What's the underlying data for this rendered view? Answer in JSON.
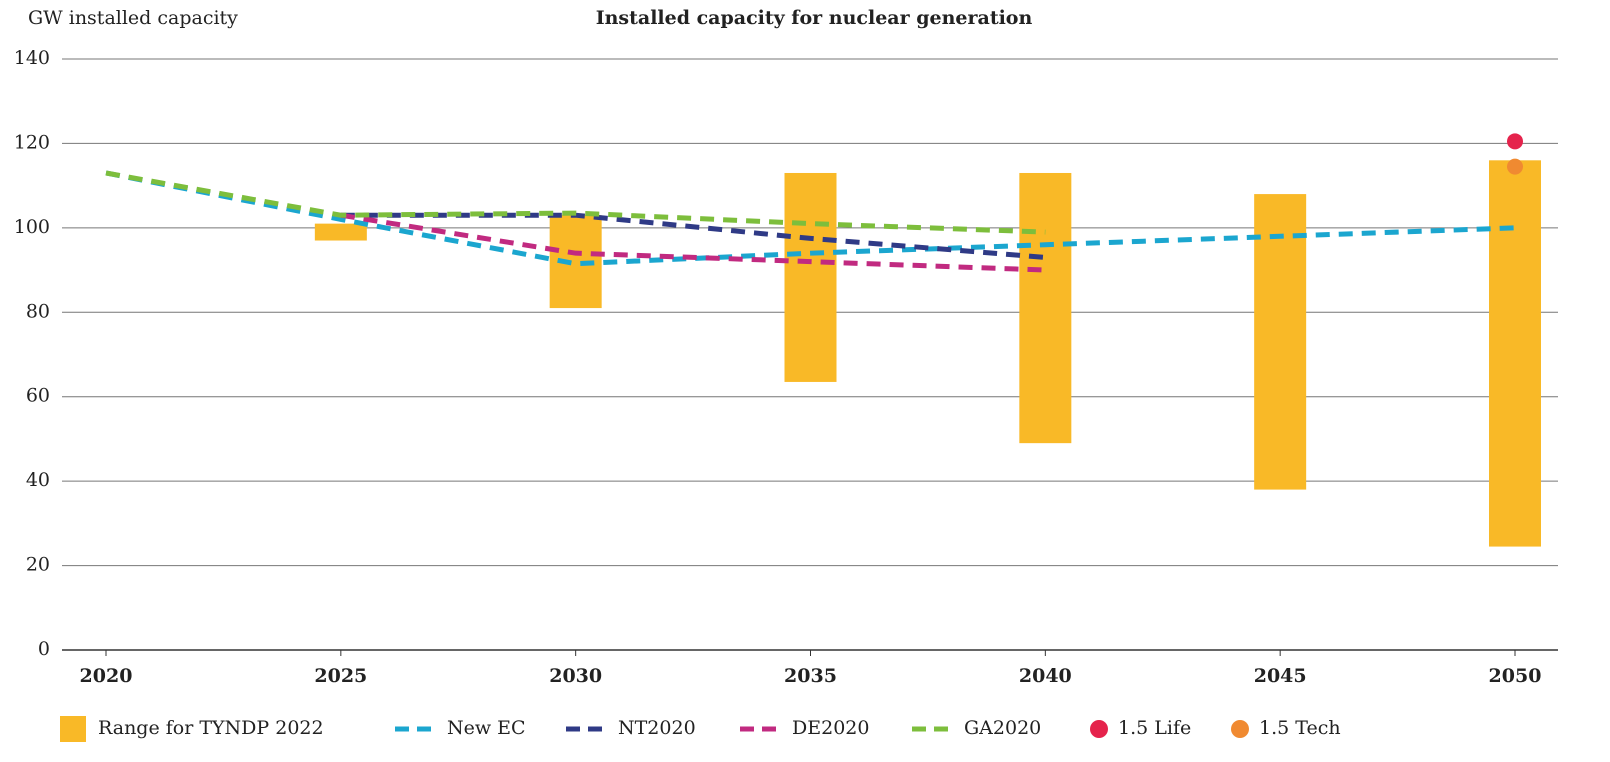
{
  "chart_data": {
    "type": "line",
    "title": "Installed capacity for nuclear generation",
    "y_label": "GW installed capacity",
    "xlim": [
      2020,
      2050
    ],
    "xticks": [
      2020,
      2025,
      2030,
      2035,
      2040,
      2045,
      2050
    ],
    "ylim": [
      0,
      140
    ],
    "yticks": [
      0,
      20,
      40,
      60,
      80,
      100,
      120,
      140
    ],
    "grid": true,
    "range": {
      "name": "Range for TYNDP 2022",
      "color": "#f9b927",
      "x": [
        2025,
        2030,
        2035,
        2040,
        2045,
        2050
      ],
      "low": [
        97,
        81,
        63.5,
        49,
        38,
        24.5
      ],
      "high": [
        101,
        103,
        113,
        113,
        108,
        116
      ]
    },
    "series": [
      {
        "name": "New EC",
        "color": "#1ba6cf",
        "x": [
          2020,
          2025,
          2030,
          2035,
          2040,
          2045,
          2050
        ],
        "values": [
          113,
          102,
          91.5,
          94,
          96,
          98,
          100
        ]
      },
      {
        "name": "NT2020",
        "color": "#2f3a86",
        "x": [
          2025,
          2030,
          2035,
          2040
        ],
        "values": [
          103,
          103,
          97.5,
          93
        ]
      },
      {
        "name": "DE2020",
        "color": "#c12a80",
        "x": [
          2025,
          2030,
          2035,
          2040
        ],
        "values": [
          103,
          94,
          92,
          90
        ]
      },
      {
        "name": "GA2020",
        "color": "#7dbe3c",
        "x": [
          2020,
          2025,
          2030,
          2035,
          2040
        ],
        "values": [
          113,
          103,
          103.5,
          101,
          99
        ]
      }
    ],
    "points": [
      {
        "name": "1.5 Life",
        "color": "#e5234c",
        "x": [
          2050
        ],
        "values": [
          120.5
        ]
      },
      {
        "name": "1.5 Tech",
        "color": "#f08a31",
        "x": [
          2050
        ],
        "values": [
          114.5
        ]
      }
    ]
  }
}
